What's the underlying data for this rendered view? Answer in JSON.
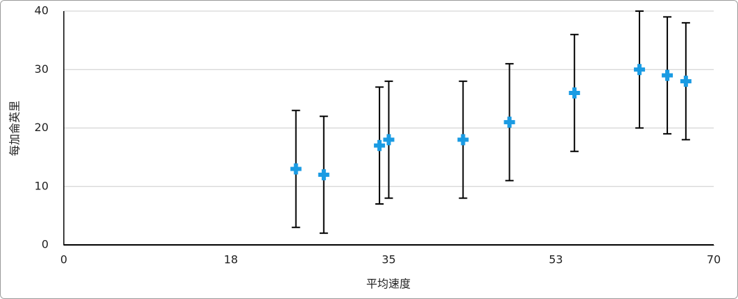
{
  "chart_data": {
    "type": "scatter",
    "x_label": "平均速度",
    "y_label": "每加侖英里",
    "x": [
      25,
      28,
      34,
      35,
      43,
      48,
      55,
      62,
      65,
      67
    ],
    "values": [
      13,
      12,
      17,
      18,
      18,
      21,
      26,
      30,
      29,
      28
    ],
    "errors": [
      10,
      10,
      10,
      10,
      10,
      10,
      10,
      10,
      10,
      10
    ],
    "color": "#1a9be3",
    "xlim": [
      0,
      70
    ],
    "xticks": [
      0,
      18,
      35,
      53,
      70
    ],
    "ylim": [
      0,
      40
    ],
    "yticks": [
      0,
      10,
      20,
      30,
      40
    ],
    "grid": true
  }
}
